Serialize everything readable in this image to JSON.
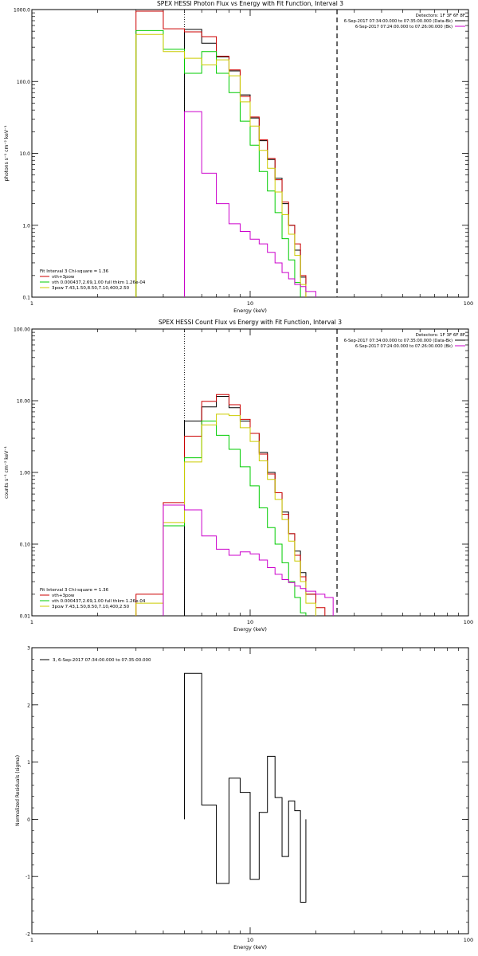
{
  "chart_data": [
    {
      "type": "line",
      "title": "SPEX HESSI Photon Flux vs Energy with Fit Function, Interval 3",
      "xlabel": "Energy (keV)",
      "ylabel": "photons s⁻¹ cm⁻² keV⁻¹",
      "xscale": "log",
      "yscale": "log",
      "xlim": [
        1,
        100
      ],
      "ylim": [
        0.1,
        1000
      ],
      "x_ticks": [
        {
          "v": 1,
          "label": "1"
        },
        {
          "v": 10,
          "label": "10"
        },
        {
          "v": 100,
          "label": "100"
        }
      ],
      "y_ticks": [
        {
          "v": 0.1,
          "label": "0.1"
        },
        {
          "v": 1,
          "label": "1.0"
        },
        {
          "v": 10,
          "label": "10.0"
        },
        {
          "v": 100,
          "label": "100.0"
        },
        {
          "v": 1000,
          "label": "1000.0"
        }
      ],
      "detectors_label": "Detectors: 1F 3F 6F 8F",
      "time_legend": [
        {
          "text": "6-Sep-2017 07:34:00.000 to 07:35:00.000 (Data-Bk)",
          "color": "#000000"
        },
        {
          "text": "6-Sep-2017 07:24:00.000 to 07:26:00.000 (Bk)",
          "color": "#cc00cc"
        }
      ],
      "fit_header": "Fit Interval 3   Chi-square = 1.36",
      "fit_legend": [
        {
          "text": "vth+3pow",
          "color": "#cc0000"
        },
        {
          "text": "vth 0.000437,2.69,1.00   full thkm 1.26e-04",
          "color": "#00cc00"
        },
        {
          "text": "3pow 7.43,1.50,8.50,7.10,400,2.50",
          "color": "#cccc00"
        }
      ],
      "vlines": [
        {
          "x": 5.0,
          "style": "dotted"
        },
        {
          "x": 25.0,
          "style": "dashed"
        }
      ],
      "energy_edges": [
        3,
        4,
        5,
        6,
        7,
        8,
        9,
        10,
        11,
        12,
        13,
        14,
        15,
        16,
        17,
        18,
        20,
        22,
        24,
        26,
        28,
        30
      ],
      "series": [
        {
          "name": "Data-Bk",
          "color": "#000000",
          "values": [
            null,
            null,
            530,
            340,
            220,
            140,
            65,
            31,
            15,
            8.2,
            4.5,
            2.0,
            1.0,
            0.45,
            0.19,
            null,
            null,
            null,
            null,
            null,
            null
          ]
        },
        {
          "name": "vth+3pow",
          "color": "#cc0000",
          "values": [
            950,
            540,
            490,
            420,
            225,
            145,
            62,
            32,
            15.5,
            8.5,
            4.3,
            2.1,
            1.0,
            0.55,
            0.2,
            null,
            null,
            null,
            null,
            null,
            null
          ]
        },
        {
          "name": "vth",
          "color": "#00cc00",
          "values": [
            510,
            280,
            130,
            260,
            130,
            70,
            28,
            13,
            5.6,
            3.0,
            1.5,
            0.65,
            0.33,
            0.16,
            null,
            null,
            null,
            null,
            null,
            null,
            null
          ]
        },
        {
          "name": "3pow",
          "color": "#cccc00",
          "values": [
            450,
            260,
            210,
            170,
            200,
            120,
            52,
            24,
            11,
            6.2,
            2.9,
            1.4,
            0.75,
            0.38,
            0.15,
            null,
            null,
            null,
            null,
            null,
            null
          ]
        },
        {
          "name": "Bk",
          "color": "#cc00cc",
          "values": [
            null,
            null,
            38,
            5.3,
            2.0,
            1.05,
            0.82,
            0.64,
            0.55,
            0.42,
            0.3,
            0.22,
            0.18,
            0.15,
            0.14,
            0.12,
            null,
            null,
            null,
            null,
            null
          ]
        }
      ]
    },
    {
      "type": "line",
      "title": "SPEX HESSI Count Flux vs Energy with Fit Function, Interval 3",
      "xlabel": "Energy (keV)",
      "ylabel": "counts s⁻¹ cm⁻² keV⁻¹",
      "xscale": "log",
      "yscale": "log",
      "xlim": [
        1,
        100
      ],
      "ylim": [
        0.01,
        100
      ],
      "x_ticks": [
        {
          "v": 1,
          "label": "1"
        },
        {
          "v": 10,
          "label": "10"
        },
        {
          "v": 100,
          "label": "100"
        }
      ],
      "y_ticks": [
        {
          "v": 0.01,
          "label": "0.01"
        },
        {
          "v": 0.1,
          "label": "0.10"
        },
        {
          "v": 1,
          "label": "1.00"
        },
        {
          "v": 10,
          "label": "10.00"
        },
        {
          "v": 100,
          "label": "100.00"
        }
      ],
      "detectors_label": "Detectors: 1F 3F 6F 8F",
      "time_legend": [
        {
          "text": "6-Sep-2017 07:34:00.000 to 07:35:00.000 (Data-Bk)",
          "color": "#000000"
        },
        {
          "text": "6-Sep-2017 07:24:00.000 to 07:26:00.000 (Bk)",
          "color": "#cc00cc"
        }
      ],
      "fit_header": "Fit Interval 3   Chi-square = 1.36",
      "fit_legend": [
        {
          "text": "vth+3pow",
          "color": "#cc0000"
        },
        {
          "text": "vth 0.000437,2.69,1.00   full thkm 1.26e-04",
          "color": "#00cc00"
        },
        {
          "text": "3pow 7.43,1.50,8.50,7.10,400,2.50",
          "color": "#cccc00"
        }
      ],
      "vlines": [
        {
          "x": 5.0,
          "style": "dotted"
        },
        {
          "x": 25.0,
          "style": "dashed"
        }
      ],
      "energy_edges": [
        3,
        4,
        5,
        6,
        7,
        8,
        9,
        10,
        11,
        12,
        13,
        14,
        15,
        16,
        17,
        18,
        20,
        22,
        24,
        26,
        28,
        30
      ],
      "series": [
        {
          "name": "Data-Bk",
          "color": "#000000",
          "values": [
            null,
            null,
            5.2,
            8.2,
            11.5,
            8.0,
            5.2,
            3.5,
            1.9,
            1.0,
            0.52,
            0.28,
            0.14,
            0.08,
            0.04,
            0.02,
            null,
            null,
            null,
            null,
            null
          ]
        },
        {
          "name": "vth+3pow",
          "color": "#cc0000",
          "values": [
            0.02,
            0.38,
            3.2,
            9.8,
            12.2,
            8.8,
            5.5,
            3.5,
            1.8,
            0.95,
            0.52,
            0.26,
            0.14,
            0.07,
            0.035,
            0.02,
            0.013,
            null,
            null,
            null,
            null
          ]
        },
        {
          "name": "vth",
          "color": "#00cc00",
          "values": [
            null,
            0.18,
            1.6,
            5.2,
            3.3,
            2.1,
            1.2,
            0.65,
            0.32,
            0.17,
            0.1,
            0.055,
            0.03,
            0.018,
            0.011,
            null,
            null,
            null,
            null,
            null,
            null
          ]
        },
        {
          "name": "3pow",
          "color": "#cccc00",
          "values": [
            0.015,
            0.2,
            1.4,
            4.6,
            6.5,
            6.2,
            4.2,
            2.7,
            1.45,
            0.8,
            0.42,
            0.22,
            0.11,
            0.058,
            0.03,
            0.015,
            null,
            null,
            null,
            null,
            null
          ]
        },
        {
          "name": "Bk",
          "color": "#cc00cc",
          "values": [
            null,
            0.35,
            0.3,
            0.13,
            0.085,
            0.07,
            0.078,
            0.073,
            0.06,
            0.047,
            0.038,
            0.032,
            0.029,
            0.026,
            0.024,
            0.022,
            0.02,
            0.018,
            null,
            null,
            null
          ]
        }
      ]
    },
    {
      "type": "line",
      "title": "",
      "xlabel": "Energy (keV)",
      "ylabel": "Normalized Residuals (sigma)",
      "xscale": "log",
      "yscale": "linear",
      "xlim": [
        1,
        100
      ],
      "ylim": [
        -2,
        3
      ],
      "x_ticks": [
        {
          "v": 1,
          "label": "1"
        },
        {
          "v": 10,
          "label": "10"
        },
        {
          "v": 100,
          "label": "100"
        }
      ],
      "y_ticks": [
        {
          "v": -2,
          "label": "-2"
        },
        {
          "v": -1,
          "label": "-1"
        },
        {
          "v": 0,
          "label": "0"
        },
        {
          "v": 1,
          "label": "1"
        },
        {
          "v": 2,
          "label": "2"
        },
        {
          "v": 3,
          "label": "3"
        }
      ],
      "legend": "3,  6-Sep-2017 07:34:00.000 to 07:35:00.000",
      "energy_edges": [
        5,
        6,
        7,
        8,
        9,
        10,
        11,
        12,
        13,
        14,
        15,
        16,
        17,
        18,
        20,
        22,
        24
      ],
      "series": [
        {
          "name": "residuals",
          "color": "#000000",
          "values": [
            2.55,
            0.25,
            -1.12,
            0.72,
            0.47,
            -1.05,
            0.12,
            1.1,
            0.38,
            -0.65,
            0.32,
            0.15,
            -1.45,
            null,
            null,
            null
          ]
        }
      ]
    }
  ]
}
